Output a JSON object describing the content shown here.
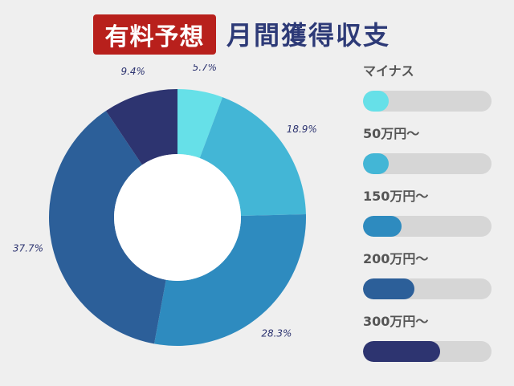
{
  "header": {
    "badge_text": "有料予想",
    "badge_color": "#b8201c",
    "title": "月間獲得収支",
    "title_color": "#2d3a77"
  },
  "chart_data": {
    "type": "pie",
    "donut": true,
    "title": "",
    "labels_format": "percent",
    "slices": [
      {
        "label": "マイナス",
        "value": 5.7,
        "display": "5.7%",
        "color": "#66e0e8"
      },
      {
        "label": "50万円〜",
        "value": 18.9,
        "display": "18.9%",
        "color": "#43b6d6"
      },
      {
        "label": "150万円〜",
        "value": 28.3,
        "display": "28.3%",
        "color": "#2e8bbf"
      },
      {
        "label": "200万円〜",
        "value": 37.7,
        "display": "37.7%",
        "color": "#2c5f99"
      },
      {
        "label": "300万円〜",
        "value": 9.4,
        "display": "9.4%",
        "color": "#2d3470"
      }
    ],
    "legend_placement": "right",
    "label_color": "#2d3470"
  },
  "legend": {
    "items": [
      {
        "label": "マイナス",
        "color": "#66e0e8",
        "fill_fraction": 0.2
      },
      {
        "label": "50万円〜",
        "color": "#43b6d6",
        "fill_fraction": 0.2
      },
      {
        "label": "150万円〜",
        "color": "#2e8bbf",
        "fill_fraction": 0.3
      },
      {
        "label": "200万円〜",
        "color": "#2c5f99",
        "fill_fraction": 0.4
      },
      {
        "label": "300万円〜",
        "color": "#2d3470",
        "fill_fraction": 0.6
      }
    ],
    "track_color": "#d6d6d6"
  }
}
